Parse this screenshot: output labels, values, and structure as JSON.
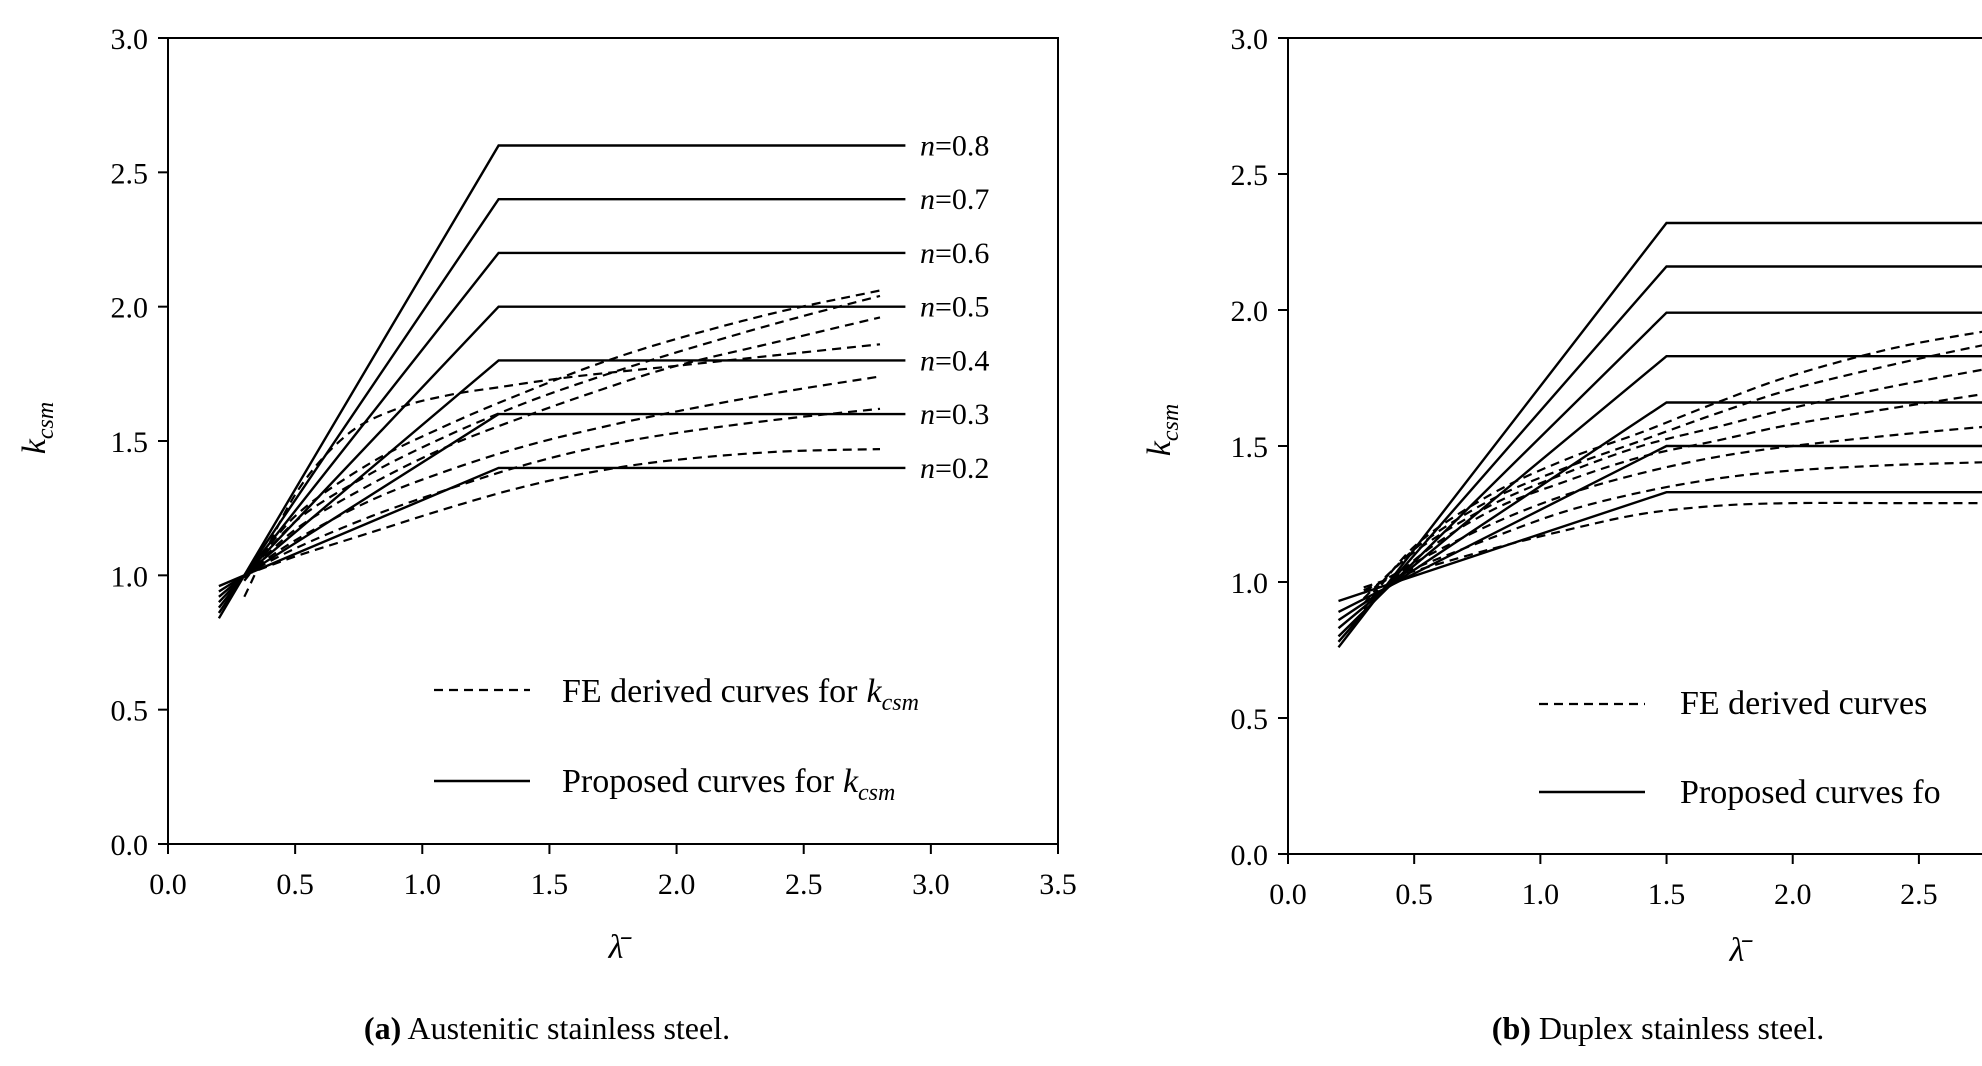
{
  "chart_data": [
    {
      "type": "line",
      "panel_id": "a",
      "caption_prefix": "(a)",
      "caption_text": "Austenitic stainless steel.",
      "xlabel": "λ̄",
      "ylabel_main": "k",
      "ylabel_sub": "csm",
      "xlim": [
        0,
        3.5
      ],
      "ylim": [
        0,
        3.0
      ],
      "xticks": [
        "0.0",
        "0.5",
        "1.0",
        "1.5",
        "2.0",
        "2.5",
        "3.0",
        "3.5"
      ],
      "yticks": [
        "0.0",
        "0.5",
        "1.0",
        "1.5",
        "2.0",
        "2.5",
        "3.0"
      ],
      "legend": {
        "fe_label": "FE derived curves for",
        "proposed_label": "Proposed curves for",
        "symbol_main": "k",
        "symbol_sub": "csm"
      },
      "proposed_curves": [
        {
          "label_var": "n",
          "label_val": "=0.8",
          "points": [
            [
              0.2,
              0.84
            ],
            [
              1.3,
              2.6
            ],
            [
              2.9,
              2.6
            ]
          ]
        },
        {
          "label_var": "n",
          "label_val": "=0.7",
          "points": [
            [
              0.2,
              0.86
            ],
            [
              1.3,
              2.4
            ],
            [
              2.9,
              2.4
            ]
          ]
        },
        {
          "label_var": "n",
          "label_val": "=0.6",
          "points": [
            [
              0.2,
              0.88
            ],
            [
              1.3,
              2.2
            ],
            [
              2.9,
              2.2
            ]
          ]
        },
        {
          "label_var": "n",
          "label_val": "=0.5",
          "points": [
            [
              0.2,
              0.9
            ],
            [
              1.3,
              2.0
            ],
            [
              2.9,
              2.0
            ]
          ]
        },
        {
          "label_var": "n",
          "label_val": "=0.4",
          "points": [
            [
              0.2,
              0.92
            ],
            [
              1.3,
              1.8
            ],
            [
              2.9,
              1.8
            ]
          ]
        },
        {
          "label_var": "n",
          "label_val": "=0.3",
          "points": [
            [
              0.2,
              0.94
            ],
            [
              1.3,
              1.6
            ],
            [
              2.9,
              1.6
            ]
          ]
        },
        {
          "label_var": "n",
          "label_val": "=0.2",
          "points": [
            [
              0.2,
              0.96
            ],
            [
              1.3,
              1.4
            ],
            [
              2.9,
              1.4
            ]
          ]
        }
      ],
      "fe_curves": [
        {
          "points": [
            [
              0.3,
              0.92
            ],
            [
              0.5,
              1.3
            ],
            [
              0.7,
              1.52
            ],
            [
              0.9,
              1.62
            ],
            [
              1.1,
              1.67
            ],
            [
              1.3,
              1.7
            ],
            [
              1.6,
              1.74
            ],
            [
              2.0,
              1.78
            ],
            [
              2.4,
              1.82
            ],
            [
              2.8,
              1.86
            ]
          ]
        },
        {
          "points": [
            [
              0.3,
              0.98
            ],
            [
              0.5,
              1.22
            ],
            [
              0.8,
              1.42
            ],
            [
              1.1,
              1.56
            ],
            [
              1.4,
              1.68
            ],
            [
              1.7,
              1.79
            ],
            [
              2.0,
              1.88
            ],
            [
              2.4,
              1.98
            ],
            [
              2.8,
              2.06
            ]
          ]
        },
        {
          "points": [
            [
              0.3,
              0.98
            ],
            [
              0.5,
              1.2
            ],
            [
              0.8,
              1.38
            ],
            [
              1.1,
              1.52
            ],
            [
              1.4,
              1.64
            ],
            [
              1.7,
              1.74
            ],
            [
              2.0,
              1.83
            ],
            [
              2.4,
              1.94
            ],
            [
              2.8,
              2.04
            ]
          ]
        },
        {
          "points": [
            [
              0.3,
              0.99
            ],
            [
              0.5,
              1.17
            ],
            [
              0.8,
              1.34
            ],
            [
              1.1,
              1.48
            ],
            [
              1.4,
              1.59
            ],
            [
              1.7,
              1.69
            ],
            [
              2.0,
              1.78
            ],
            [
              2.4,
              1.87
            ],
            [
              2.8,
              1.96
            ]
          ]
        },
        {
          "points": [
            [
              0.3,
              1.0
            ],
            [
              0.5,
              1.13
            ],
            [
              0.8,
              1.28
            ],
            [
              1.1,
              1.39
            ],
            [
              1.4,
              1.48
            ],
            [
              1.7,
              1.55
            ],
            [
              2.0,
              1.61
            ],
            [
              2.4,
              1.68
            ],
            [
              2.8,
              1.74
            ]
          ]
        },
        {
          "points": [
            [
              0.3,
              1.0
            ],
            [
              0.5,
              1.1
            ],
            [
              0.8,
              1.22
            ],
            [
              1.1,
              1.32
            ],
            [
              1.4,
              1.41
            ],
            [
              1.7,
              1.48
            ],
            [
              2.0,
              1.53
            ],
            [
              2.4,
              1.58
            ],
            [
              2.8,
              1.62
            ]
          ]
        },
        {
          "points": [
            [
              0.3,
              1.0
            ],
            [
              0.5,
              1.07
            ],
            [
              0.8,
              1.16
            ],
            [
              1.1,
              1.25
            ],
            [
              1.4,
              1.33
            ],
            [
              1.7,
              1.39
            ],
            [
              2.0,
              1.43
            ],
            [
              2.4,
              1.46
            ],
            [
              2.8,
              1.47
            ]
          ]
        }
      ]
    },
    {
      "type": "line",
      "panel_id": "b",
      "caption_prefix": "(b)",
      "caption_text": "Duplex stainless steel.",
      "xlabel": "λ̄",
      "ylabel_main": "k",
      "ylabel_sub": "csm",
      "xlim": [
        0,
        2.75
      ],
      "ylim": [
        0,
        3.0
      ],
      "xticks": [
        "0.0",
        "0.5",
        "1.0",
        "1.5",
        "2.0",
        "2.5"
      ],
      "yticks": [
        "0.0",
        "0.5",
        "1.0",
        "1.5",
        "2.0",
        "2.5",
        "3.0"
      ],
      "legend": {
        "fe_label": "FE derived curves",
        "proposed_label": "Proposed curves fo"
      },
      "proposed_curves": [
        {
          "points": [
            [
              0.2,
              0.76
            ],
            [
              1.5,
              2.32
            ],
            [
              2.75,
              2.32
            ]
          ]
        },
        {
          "points": [
            [
              0.2,
              0.78
            ],
            [
              1.5,
              2.16
            ],
            [
              2.75,
              2.16
            ]
          ]
        },
        {
          "points": [
            [
              0.2,
              0.8
            ],
            [
              1.5,
              1.99
            ],
            [
              2.75,
              1.99
            ]
          ]
        },
        {
          "points": [
            [
              0.2,
              0.83
            ],
            [
              1.5,
              1.83
            ],
            [
              2.75,
              1.83
            ]
          ]
        },
        {
          "points": [
            [
              0.2,
              0.86
            ],
            [
              1.5,
              1.66
            ],
            [
              2.75,
              1.66
            ]
          ]
        },
        {
          "points": [
            [
              0.2,
              0.89
            ],
            [
              1.5,
              1.5
            ],
            [
              2.75,
              1.5
            ]
          ]
        },
        {
          "points": [
            [
              0.2,
              0.93
            ],
            [
              1.5,
              1.33
            ],
            [
              2.75,
              1.33
            ]
          ]
        }
      ],
      "fe_curves": [
        {
          "points": [
            [
              0.3,
              0.9
            ],
            [
              0.5,
              1.13
            ],
            [
              0.8,
              1.32
            ],
            [
              1.1,
              1.45
            ],
            [
              1.4,
              1.55
            ],
            [
              1.7,
              1.66
            ],
            [
              2.0,
              1.76
            ],
            [
              2.4,
              1.86
            ],
            [
              2.75,
              1.92
            ]
          ]
        },
        {
          "points": [
            [
              0.3,
              0.92
            ],
            [
              0.5,
              1.12
            ],
            [
              0.8,
              1.3
            ],
            [
              1.1,
              1.42
            ],
            [
              1.4,
              1.52
            ],
            [
              1.7,
              1.62
            ],
            [
              2.0,
              1.71
            ],
            [
              2.4,
              1.8
            ],
            [
              2.75,
              1.87
            ]
          ]
        },
        {
          "points": [
            [
              0.3,
              0.94
            ],
            [
              0.5,
              1.11
            ],
            [
              0.8,
              1.28
            ],
            [
              1.1,
              1.4
            ],
            [
              1.4,
              1.5
            ],
            [
              1.7,
              1.57
            ],
            [
              2.0,
              1.64
            ],
            [
              2.4,
              1.72
            ],
            [
              2.75,
              1.78
            ]
          ]
        },
        {
          "points": [
            [
              0.25,
              0.84
            ],
            [
              0.5,
              1.08
            ],
            [
              0.8,
              1.26
            ],
            [
              1.1,
              1.37
            ],
            [
              1.4,
              1.46
            ],
            [
              1.7,
              1.52
            ],
            [
              2.0,
              1.58
            ],
            [
              2.4,
              1.64
            ],
            [
              2.75,
              1.69
            ]
          ]
        },
        {
          "points": [
            [
              0.3,
              0.96
            ],
            [
              0.5,
              1.07
            ],
            [
              0.8,
              1.21
            ],
            [
              1.1,
              1.32
            ],
            [
              1.4,
              1.4
            ],
            [
              1.7,
              1.46
            ],
            [
              2.0,
              1.5
            ],
            [
              2.4,
              1.54
            ],
            [
              2.75,
              1.57
            ]
          ]
        },
        {
          "points": [
            [
              0.3,
              0.97
            ],
            [
              0.5,
              1.05
            ],
            [
              0.8,
              1.16
            ],
            [
              1.1,
              1.26
            ],
            [
              1.4,
              1.33
            ],
            [
              1.7,
              1.38
            ],
            [
              2.0,
              1.41
            ],
            [
              2.4,
              1.43
            ],
            [
              2.75,
              1.44
            ]
          ]
        },
        {
          "points": [
            [
              0.3,
              0.98
            ],
            [
              0.5,
              1.04
            ],
            [
              0.8,
              1.12
            ],
            [
              1.1,
              1.19
            ],
            [
              1.4,
              1.25
            ],
            [
              1.7,
              1.28
            ],
            [
              2.0,
              1.29
            ],
            [
              2.4,
              1.29
            ],
            [
              2.75,
              1.29
            ]
          ]
        }
      ]
    }
  ]
}
